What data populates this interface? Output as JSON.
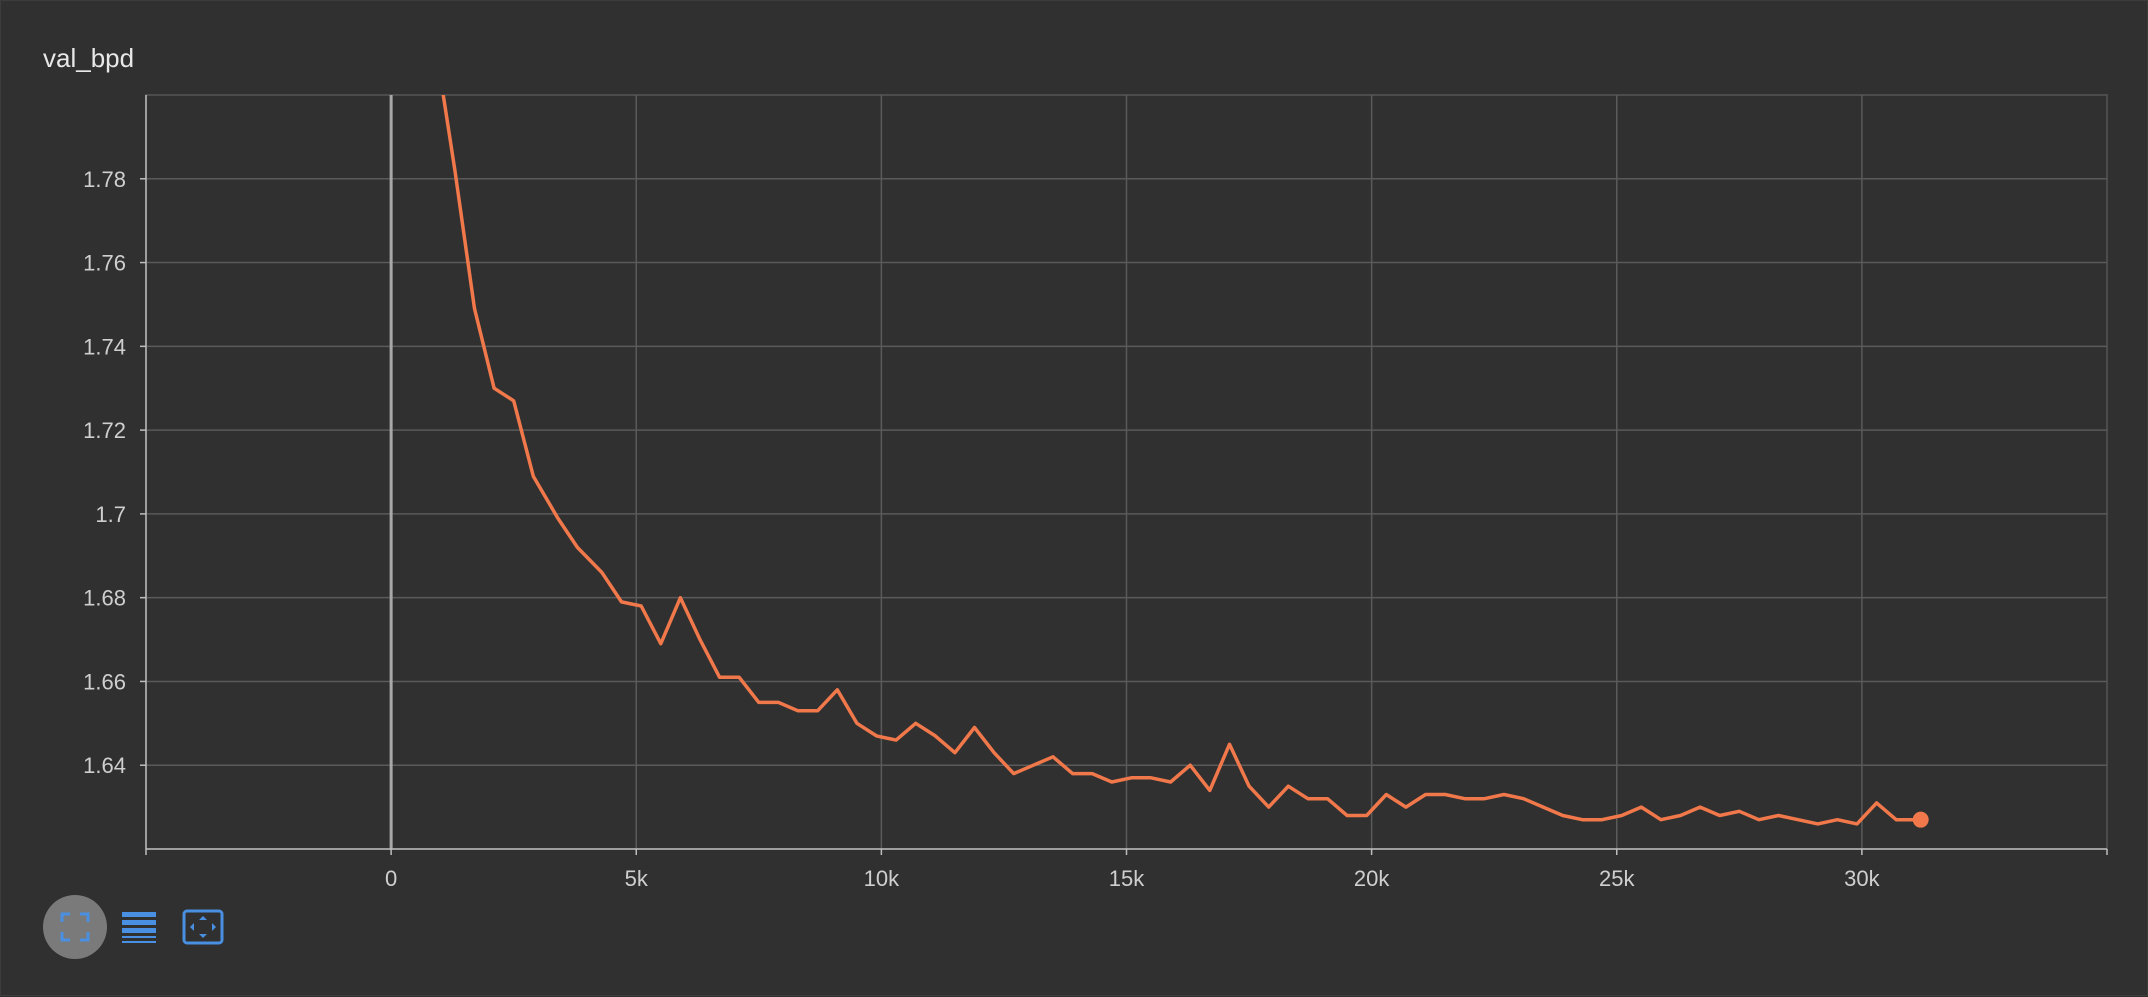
{
  "card": {
    "title": "val_bpd"
  },
  "toolbar": {
    "buttons": [
      {
        "name": "toggle-fullscreen",
        "icon": "fullscreen-icon",
        "active": true
      },
      {
        "name": "toggle-log-scale",
        "icon": "list-lines-icon",
        "active": false
      },
      {
        "name": "fit-domain",
        "icon": "fit-to-data-icon",
        "active": false
      }
    ]
  },
  "colors": {
    "background": "#303030",
    "line": "#f0784a",
    "grid": "#5a5a5a",
    "accent_icon": "#4a90e2"
  },
  "chart_data": {
    "type": "line",
    "title": "val_bpd",
    "xlabel": "",
    "ylabel": "",
    "xlim": [
      -5000,
      35000
    ],
    "ylim": [
      1.62,
      1.8
    ],
    "x_ticks": [
      0,
      5000,
      10000,
      15000,
      20000,
      25000,
      30000
    ],
    "x_tick_labels": [
      "0",
      "5k",
      "10k",
      "15k",
      "20k",
      "25k",
      "30k"
    ],
    "y_ticks": [
      1.64,
      1.66,
      1.68,
      1.7,
      1.72,
      1.74,
      1.76,
      1.78
    ],
    "y_tick_labels": [
      "1.64",
      "1.66",
      "1.68",
      "1.7",
      "1.72",
      "1.74",
      "1.76",
      "1.78"
    ],
    "grid": true,
    "series": [
      {
        "color": "#f0784a",
        "x": [
          1050,
          1300,
          1700,
          2100,
          2500,
          2900,
          3400,
          3800,
          4300,
          4700,
          5100,
          5500,
          5900,
          6300,
          6700,
          7100,
          7500,
          7900,
          8300,
          8700,
          9100,
          9500,
          9900,
          10300,
          10700,
          11100,
          11500,
          11900,
          12300,
          12700,
          13100,
          13500,
          13900,
          14300,
          14700,
          15100,
          15500,
          15900,
          16300,
          16700,
          17100,
          17500,
          17900,
          18300,
          18700,
          19100,
          19500,
          19900,
          20300,
          20700,
          21100,
          21500,
          21900,
          22300,
          22700,
          23100,
          23500,
          23900,
          24300,
          24700,
          25100,
          25500,
          25900,
          26300,
          26700,
          27100,
          27500,
          27900,
          28300,
          28700,
          29100,
          29500,
          29900,
          30300,
          30700,
          31200
        ],
        "y": [
          1.801,
          1.782,
          1.749,
          1.73,
          1.727,
          1.709,
          1.699,
          1.692,
          1.686,
          1.679,
          1.678,
          1.669,
          1.68,
          1.67,
          1.661,
          1.661,
          1.655,
          1.655,
          1.653,
          1.653,
          1.658,
          1.65,
          1.647,
          1.646,
          1.65,
          1.647,
          1.643,
          1.649,
          1.643,
          1.638,
          1.64,
          1.642,
          1.638,
          1.638,
          1.636,
          1.637,
          1.637,
          1.636,
          1.64,
          1.634,
          1.645,
          1.635,
          1.63,
          1.635,
          1.632,
          1.632,
          1.628,
          1.628,
          1.633,
          1.63,
          1.633,
          1.633,
          1.632,
          1.632,
          1.633,
          1.632,
          1.63,
          1.628,
          1.627,
          1.627,
          1.628,
          1.63,
          1.627,
          1.628,
          1.63,
          1.628,
          1.629,
          1.627,
          1.628,
          1.627,
          1.626,
          1.627,
          1.626,
          1.631,
          1.627,
          1.627
        ]
      }
    ]
  }
}
